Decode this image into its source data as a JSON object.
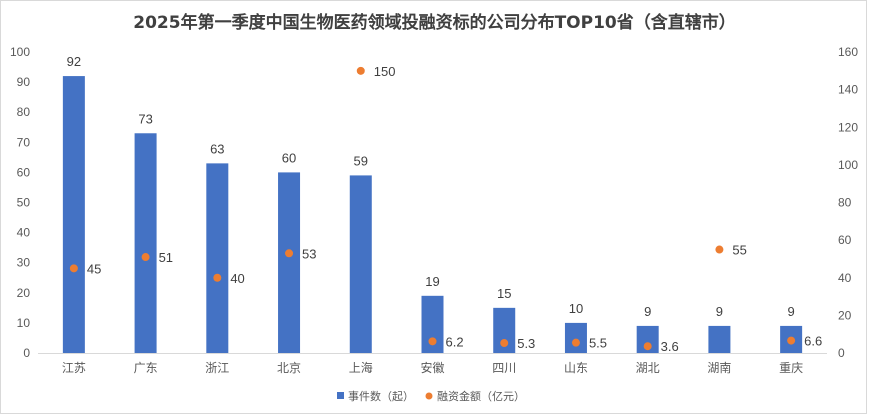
{
  "chart_data": {
    "type": "bar",
    "title": "2025年第一季度中国生物医药领域投融资标的公司分布TOP10省（含直辖市）",
    "categories": [
      "江苏",
      "广东",
      "浙江",
      "北京",
      "上海",
      "安徽",
      "四川",
      "山东",
      "湖北",
      "湖南",
      "重庆"
    ],
    "series": [
      {
        "name": "事件数（起）",
        "chart": "bar",
        "axis": "left",
        "color": "#4472C4",
        "values": [
          92,
          73,
          63,
          60,
          59,
          19,
          15,
          10,
          9,
          9,
          9
        ]
      },
      {
        "name": "融资金额（亿元）",
        "chart": "scatter",
        "axis": "right",
        "color": "#ED7D31",
        "values": [
          45,
          51,
          40,
          53,
          150,
          6.2,
          5.3,
          5.5,
          3.6,
          55,
          6.6
        ]
      }
    ],
    "y_left": {
      "min": 0,
      "max": 100,
      "ticks": [
        0,
        10,
        20,
        30,
        40,
        50,
        60,
        70,
        80,
        90,
        100
      ]
    },
    "y_right": {
      "min": 0,
      "max": 160,
      "ticks": [
        0,
        20,
        40,
        60,
        80,
        100,
        120,
        140,
        160
      ]
    },
    "grid": false,
    "legend_position": "bottom"
  }
}
